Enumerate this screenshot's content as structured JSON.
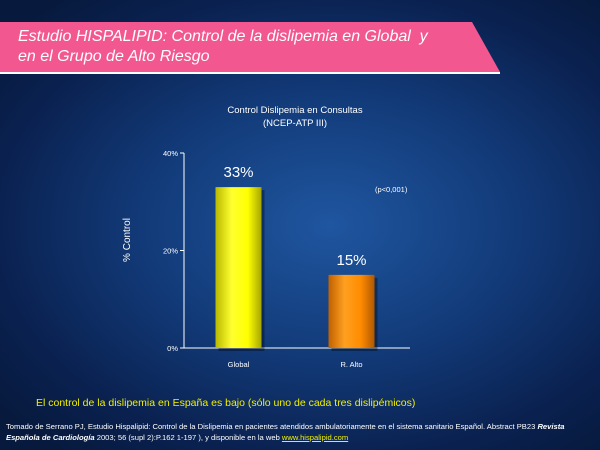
{
  "header": {
    "title": "Estudio HISPALIPID: Control de la dislipemia en Global  y\nen el Grupo de Alto Riesgo"
  },
  "chart_data": {
    "type": "bar",
    "title": "Control Dislipemia en Consultas",
    "subtitle": "(NCEP-ATP III)",
    "xlabel": "",
    "ylabel": "% Control",
    "categories": [
      "Global",
      "R. Alto"
    ],
    "values": [
      33,
      15
    ],
    "value_labels": [
      "33%",
      "15%"
    ],
    "ylim": [
      0,
      40
    ],
    "yticks": [
      0,
      20,
      40
    ],
    "ytick_labels": [
      "0%",
      "20%",
      "40%"
    ],
    "annotation": "(p<0,001)",
    "bar_colors": [
      "#ffff00",
      "#ff8c00"
    ],
    "grid": false
  },
  "conclusion": "El control de la dislipemia en España es bajo (sólo uno de cada tres dislipémicos)",
  "footnote": {
    "part1": "Tomado de Serrano PJ, Estudio Hispalipid: Control de la Dislipemia en pacientes atendidos ambulatoriamente en el sistema sanitario Español. Abstract PB23 ",
    "journal": "Revista Española de Cardiología",
    "part2": " 2003; 56 (supl 2):P.162 1-197 ), y disponible en la web ",
    "link": "www.hispalipid.com"
  }
}
